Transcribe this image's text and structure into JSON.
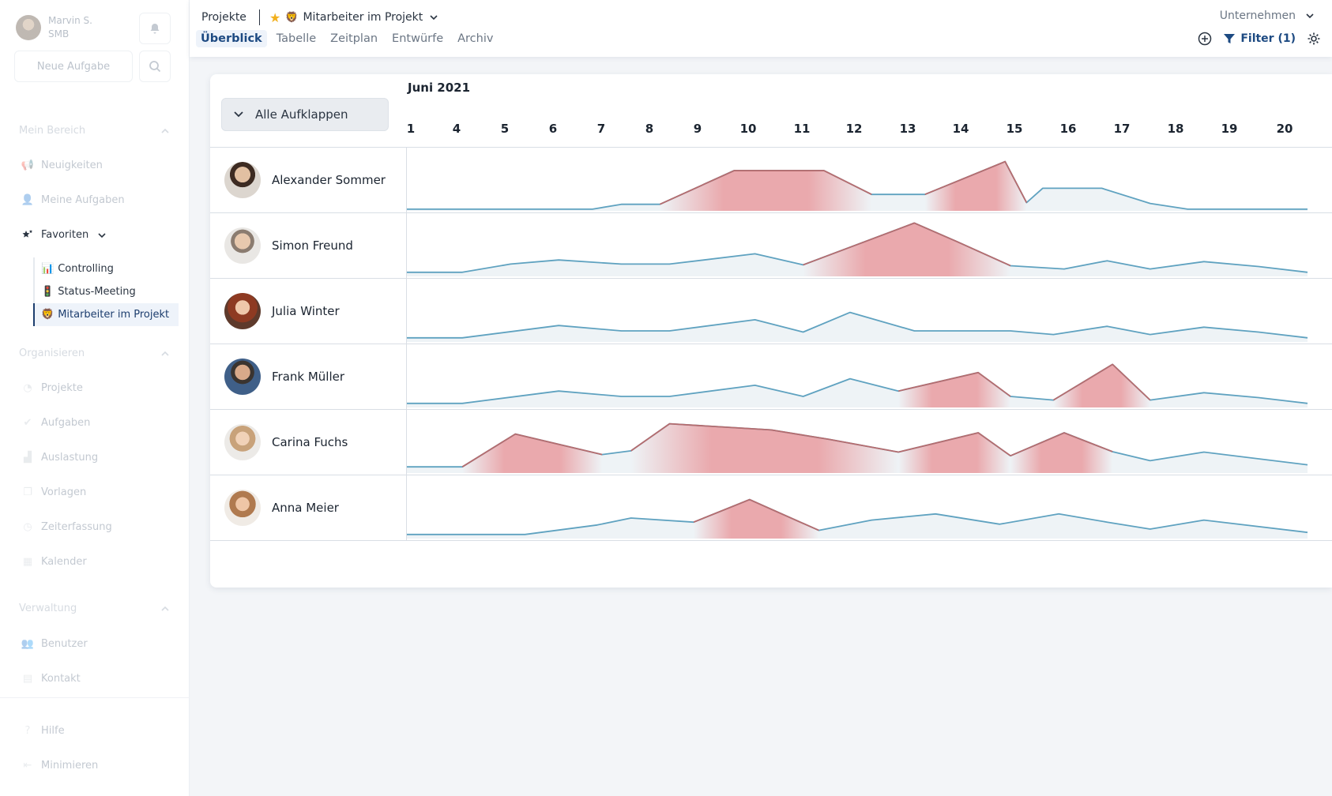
{
  "user": {
    "name": "Marvin S.",
    "org": "SMB"
  },
  "sidebar": {
    "new_task": "Neue Aufgabe",
    "sections": {
      "mein_bereich": "Mein Bereich",
      "organisieren": "Organisieren",
      "verwaltung": "Verwaltung"
    },
    "items": {
      "neuigkeiten": "Neuigkeiten",
      "meine_aufgaben": "Meine Aufgaben",
      "favoriten": "Favoriten",
      "projekte": "Projekte",
      "aufgaben": "Aufgaben",
      "auslastung": "Auslastung",
      "vorlagen": "Vorlagen",
      "zeiterfassung": "Zeiterfassung",
      "kalender": "Kalender",
      "benutzer": "Benutzer",
      "kontakt": "Kontakt",
      "hilfe": "Hilfe",
      "minimieren": "Minimieren"
    },
    "favorites": [
      "Controlling",
      "Status-Meeting",
      "Mitarbeiter im Projekt"
    ]
  },
  "header": {
    "breadcrumb_root": "Projekte",
    "view_name": "Mitarbeiter im Projekt",
    "tabs": [
      "Überblick",
      "Tabelle",
      "Zeitplan",
      "Entwürfe",
      "Archiv"
    ],
    "company_select": "Unternehmen",
    "filter_label": "Filter (1)"
  },
  "board": {
    "expand_all": "Alle Aufklappen",
    "month": "Juni 2021",
    "days": [
      "1",
      "4",
      "5",
      "6",
      "7",
      "8",
      "9",
      "10",
      "11",
      "12",
      "13",
      "14",
      "15",
      "16",
      "17",
      "18",
      "19",
      "20"
    ],
    "people": [
      "Alexander Sommer",
      "Simon Freund",
      "Julia Winter",
      "Frank Müller",
      "Carina Fuchs",
      "Anna Meier"
    ],
    "colors": {
      "line": "#5fa2c0",
      "fill": "#eef3f6",
      "overload": "#e99ca0",
      "overload_line": "#b66c6e"
    }
  },
  "chart_data": {
    "type": "line",
    "x": [
      "1",
      "4",
      "5",
      "6",
      "7",
      "8",
      "9",
      "10",
      "11",
      "12",
      "13",
      "14",
      "15",
      "16",
      "17",
      "18",
      "19",
      "20"
    ],
    "overload_threshold": 0.78,
    "series": [
      {
        "name": "Alexander Sommer",
        "points": [
          [
            0,
            0.04
          ],
          [
            3.9,
            0.04
          ],
          [
            4.5,
            0.16
          ],
          [
            5.3,
            0.16
          ],
          [
            6.8,
            0.98
          ],
          [
            8.5,
            0.98
          ],
          [
            9.4,
            0.4
          ],
          [
            10.4,
            0.4
          ],
          [
            11.9,
            1.2
          ],
          [
            12.3,
            0.2
          ],
          [
            12.6,
            0.55
          ],
          [
            13.7,
            0.55
          ],
          [
            14.6,
            0.18
          ],
          [
            15.3,
            0.04
          ],
          [
            17.5,
            0.04
          ]
        ]
      },
      {
        "name": "Simon Freund",
        "points": [
          [
            0,
            0.1
          ],
          [
            1.2,
            0.1
          ],
          [
            2.2,
            0.3
          ],
          [
            3.2,
            0.4
          ],
          [
            4.5,
            0.3
          ],
          [
            5.5,
            0.3
          ],
          [
            7.2,
            0.55
          ],
          [
            8.1,
            0.28
          ],
          [
            10.2,
            1.3
          ],
          [
            11.0,
            0.85
          ],
          [
            12.0,
            0.26
          ],
          [
            13.0,
            0.18
          ],
          [
            13.8,
            0.38
          ],
          [
            14.6,
            0.18
          ],
          [
            15.6,
            0.36
          ],
          [
            16.6,
            0.24
          ],
          [
            17.5,
            0.1
          ]
        ]
      },
      {
        "name": "Julia Winter",
        "points": [
          [
            0,
            0.1
          ],
          [
            1.2,
            0.1
          ],
          [
            3.2,
            0.4
          ],
          [
            4.5,
            0.27
          ],
          [
            5.5,
            0.27
          ],
          [
            7.2,
            0.54
          ],
          [
            8.1,
            0.24
          ],
          [
            9.0,
            0.72
          ],
          [
            10.2,
            0.27
          ],
          [
            12.0,
            0.27
          ],
          [
            12.8,
            0.18
          ],
          [
            13.8,
            0.38
          ],
          [
            14.6,
            0.18
          ],
          [
            15.6,
            0.36
          ],
          [
            16.6,
            0.24
          ],
          [
            17.5,
            0.1
          ]
        ]
      },
      {
        "name": "Frank Müller",
        "points": [
          [
            0,
            0.1
          ],
          [
            1.2,
            0.1
          ],
          [
            3.2,
            0.4
          ],
          [
            4.5,
            0.27
          ],
          [
            5.5,
            0.27
          ],
          [
            7.2,
            0.54
          ],
          [
            8.1,
            0.27
          ],
          [
            9.0,
            0.7
          ],
          [
            9.9,
            0.4
          ],
          [
            11.4,
            0.85
          ],
          [
            12.0,
            0.27
          ],
          [
            12.8,
            0.18
          ],
          [
            13.9,
            1.05
          ],
          [
            14.6,
            0.18
          ],
          [
            15.6,
            0.36
          ],
          [
            16.6,
            0.24
          ],
          [
            17.5,
            0.1
          ]
        ]
      },
      {
        "name": "Carina Fuchs",
        "points": [
          [
            0,
            0.15
          ],
          [
            1.2,
            0.15
          ],
          [
            2.3,
            0.95
          ],
          [
            4.1,
            0.45
          ],
          [
            4.7,
            0.54
          ],
          [
            5.5,
            1.2
          ],
          [
            7.5,
            1.05
          ],
          [
            8.6,
            0.82
          ],
          [
            9.9,
            0.51
          ],
          [
            11.4,
            0.98
          ],
          [
            12.0,
            0.42
          ],
          [
            13.0,
            0.98
          ],
          [
            13.9,
            0.52
          ],
          [
            14.6,
            0.3
          ],
          [
            15.6,
            0.51
          ],
          [
            17.5,
            0.2
          ]
        ]
      },
      {
        "name": "Anna Meier",
        "points": [
          [
            0,
            0.1
          ],
          [
            2.5,
            0.1
          ],
          [
            4.0,
            0.33
          ],
          [
            4.7,
            0.5
          ],
          [
            6.0,
            0.4
          ],
          [
            7.1,
            0.95
          ],
          [
            8.4,
            0.2
          ],
          [
            9.4,
            0.45
          ],
          [
            10.6,
            0.6
          ],
          [
            11.8,
            0.35
          ],
          [
            12.9,
            0.6
          ],
          [
            13.8,
            0.4
          ],
          [
            14.6,
            0.23
          ],
          [
            15.6,
            0.45
          ],
          [
            17.5,
            0.15
          ]
        ]
      }
    ]
  }
}
